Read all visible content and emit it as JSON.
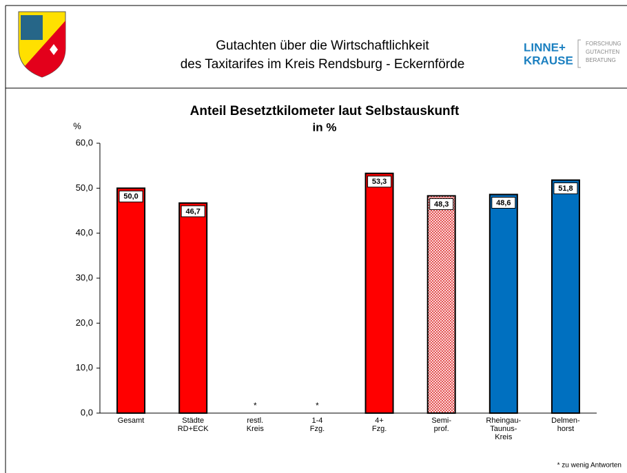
{
  "header": {
    "title_lines": [
      "Gutachten über die Wirtschaftlichkeit",
      "des Taxitarifes im Kreis Rendsburg - Eckernförde"
    ],
    "logo_lines": [
      "LINNE+",
      "KRAUSE"
    ],
    "logo_sub": [
      "FORSCHUNG",
      "GUTACHTEN",
      "BERATUNG"
    ]
  },
  "chart_data": {
    "type": "bar",
    "title": "Anteil Besetztkilometer laut Selbstauskunft",
    "subtitle": "in %",
    "y_label": "%",
    "categories": [
      [
        "Gesamt"
      ],
      [
        "Städte",
        "RD+ECK"
      ],
      [
        "restl.",
        "Kreis"
      ],
      [
        "1-4",
        "Fzg."
      ],
      [
        "4+",
        "Fzg."
      ],
      [
        "Semi-",
        "prof."
      ],
      [
        "Rheingau-",
        "Taunus-",
        "Kreis"
      ],
      [
        "Delmen-",
        "horst"
      ]
    ],
    "values": [
      50.0,
      46.7,
      null,
      null,
      53.3,
      48.3,
      48.6,
      51.8
    ],
    "value_labels": [
      "50,0",
      "46,7",
      "*",
      "*",
      "53,3",
      "48,3",
      "48,6",
      "51,8"
    ],
    "colors": [
      "#ff0000",
      "#ff0000",
      "#ff0000",
      "#ff0000",
      "#ff0000",
      "#f0b0b0",
      "#0070c0",
      "#0070c0"
    ],
    "hatched": [
      false,
      false,
      false,
      false,
      false,
      true,
      false,
      false
    ],
    "ylim": [
      0,
      60
    ],
    "yticks": [
      {
        "value": 0,
        "label": "0,0"
      },
      {
        "value": 10,
        "label": "10,0"
      },
      {
        "value": 20,
        "label": "20,0"
      },
      {
        "value": 30,
        "label": "30,0"
      },
      {
        "value": 40,
        "label": "40,0"
      },
      {
        "value": 50,
        "label": "50,0"
      },
      {
        "value": 60,
        "label": "60,0"
      }
    ],
    "note": "* zu wenig Antworten"
  }
}
